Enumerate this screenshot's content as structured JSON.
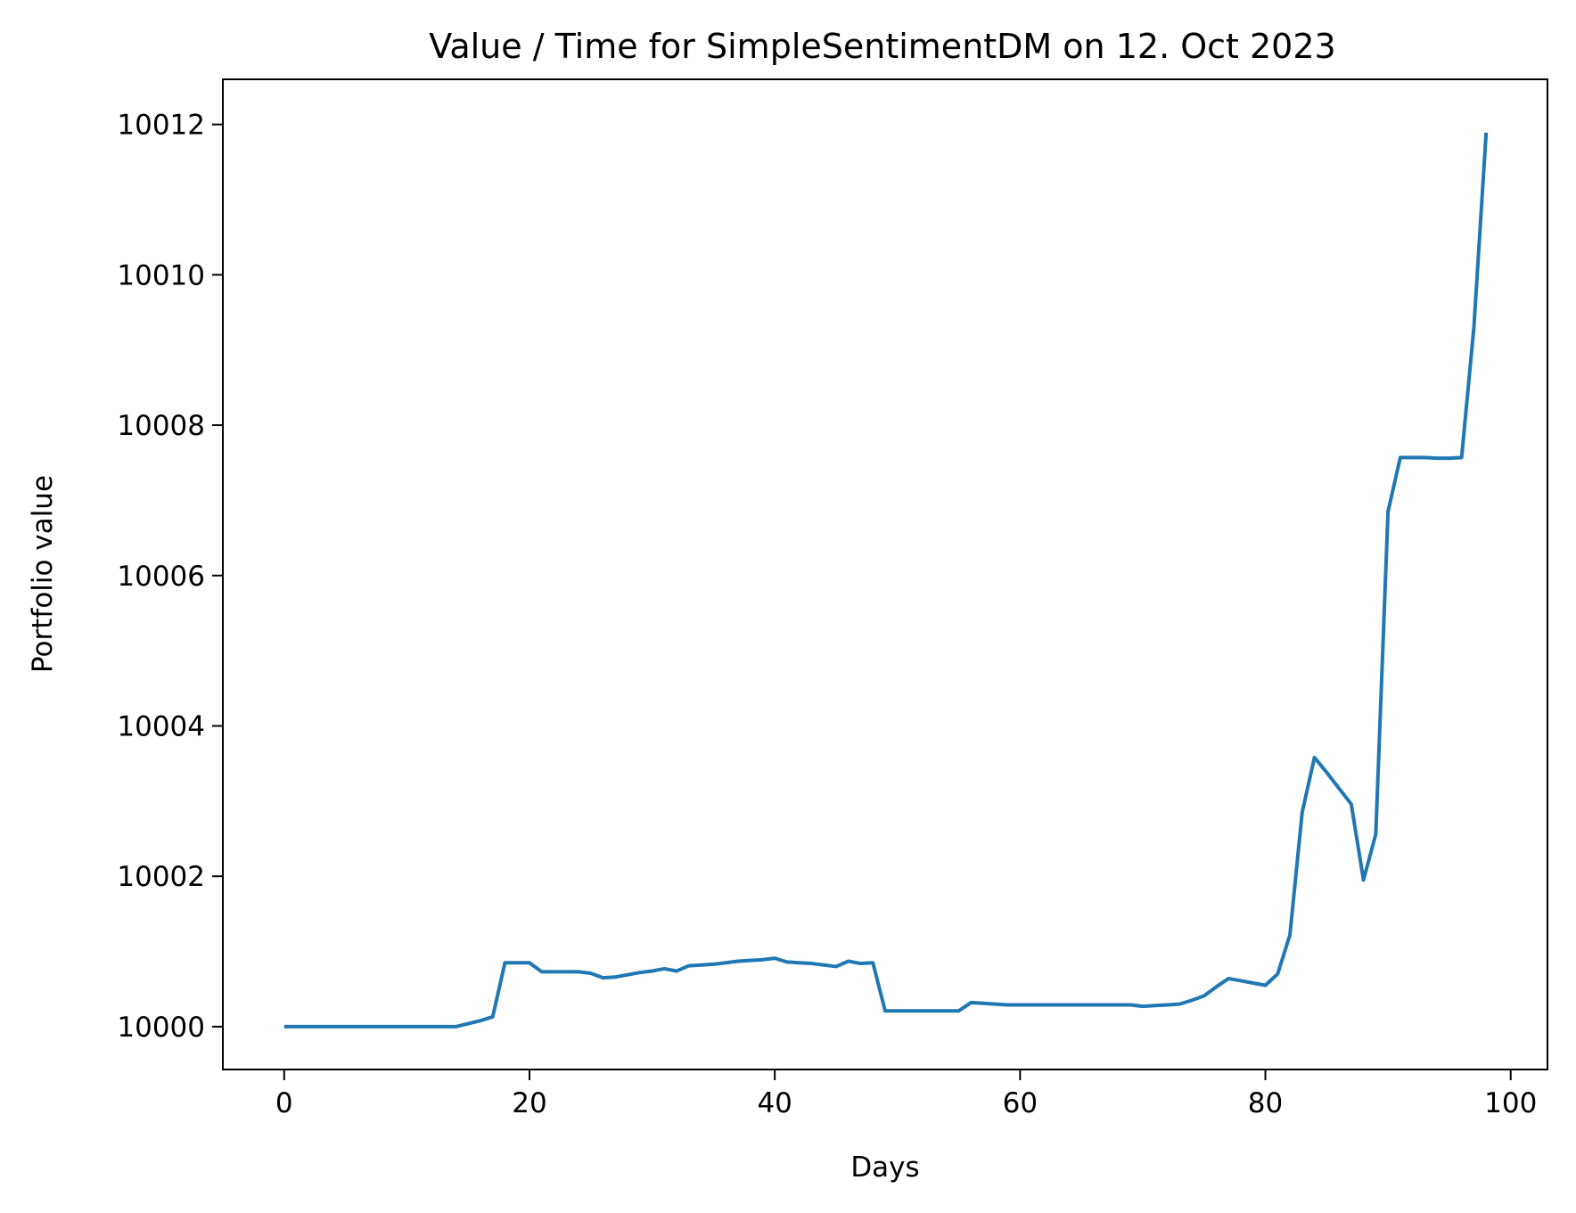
{
  "chart_data": {
    "type": "line",
    "title": "Value / Time for SimpleSentimentDM on 12. Oct 2023",
    "xlabel": "Days",
    "ylabel": "Portfolio value",
    "xlim": [
      -5,
      103
    ],
    "ylim": [
      9999.43,
      10012.6
    ],
    "xticks": [
      0,
      20,
      40,
      60,
      80,
      100
    ],
    "xtick_labels": [
      "0",
      "20",
      "40",
      "60",
      "80",
      "100"
    ],
    "yticks": [
      10000,
      10002,
      10004,
      10006,
      10008,
      10010,
      10012
    ],
    "ytick_labels": [
      "10000",
      "10002",
      "10004",
      "10006",
      "10008",
      "10010",
      "10012"
    ],
    "grid": false,
    "color": "#1f77b4",
    "series": [
      {
        "x": [
          0,
          1,
          2,
          3,
          4,
          5,
          6,
          7,
          8,
          9,
          10,
          11,
          12,
          13,
          14,
          15,
          16,
          17,
          18,
          19,
          20,
          21,
          22,
          23,
          24,
          25,
          26,
          27,
          28,
          29,
          30,
          31,
          32,
          33,
          34,
          35,
          36,
          37,
          38,
          39,
          40,
          41,
          42,
          43,
          44,
          45,
          46,
          47,
          48,
          49,
          50,
          51,
          52,
          53,
          54,
          55,
          56,
          57,
          58,
          59,
          60,
          61,
          62,
          63,
          64,
          65,
          66,
          67,
          68,
          69,
          70,
          71,
          72,
          73,
          74,
          75,
          76,
          77,
          78,
          79,
          80,
          81,
          82,
          83,
          84,
          85,
          86,
          87,
          88,
          89,
          90,
          91,
          92,
          93,
          94,
          95,
          96,
          97,
          98
        ],
        "y": [
          10000,
          10000,
          10000,
          10000,
          10000,
          10000,
          10000,
          10000,
          10000,
          10000,
          10000,
          10000,
          10000,
          10000,
          10000,
          10000.04,
          10000.08,
          10000.13,
          10000.85,
          10000.85,
          10000.85,
          10000.73,
          10000.73,
          10000.73,
          10000.73,
          10000.71,
          10000.65,
          10000.66,
          10000.69,
          10000.72,
          10000.74,
          10000.77,
          10000.74,
          10000.81,
          10000.82,
          10000.83,
          10000.85,
          10000.87,
          10000.88,
          10000.89,
          10000.91,
          10000.86,
          10000.85,
          10000.84,
          10000.82,
          10000.8,
          10000.87,
          10000.84,
          10000.85,
          10000.21,
          10000.21,
          10000.21,
          10000.21,
          10000.21,
          10000.21,
          10000.21,
          10000.32,
          10000.31,
          10000.3,
          10000.29,
          10000.29,
          10000.29,
          10000.29,
          10000.29,
          10000.29,
          10000.29,
          10000.29,
          10000.29,
          10000.29,
          10000.29,
          10000.27,
          10000.28,
          10000.29,
          10000.3,
          10000.35,
          10000.41,
          10000.53,
          10000.64,
          10000.61,
          10000.58,
          10000.55,
          10000.7,
          10001.22,
          10002.85,
          10003.58,
          10003.38,
          10003.17,
          10002.96,
          10001.95,
          10002.56,
          10006.85,
          10007.57,
          10007.57,
          10007.57,
          10007.56,
          10007.56,
          10007.57,
          10009.3,
          10011.89
        ]
      }
    ]
  }
}
